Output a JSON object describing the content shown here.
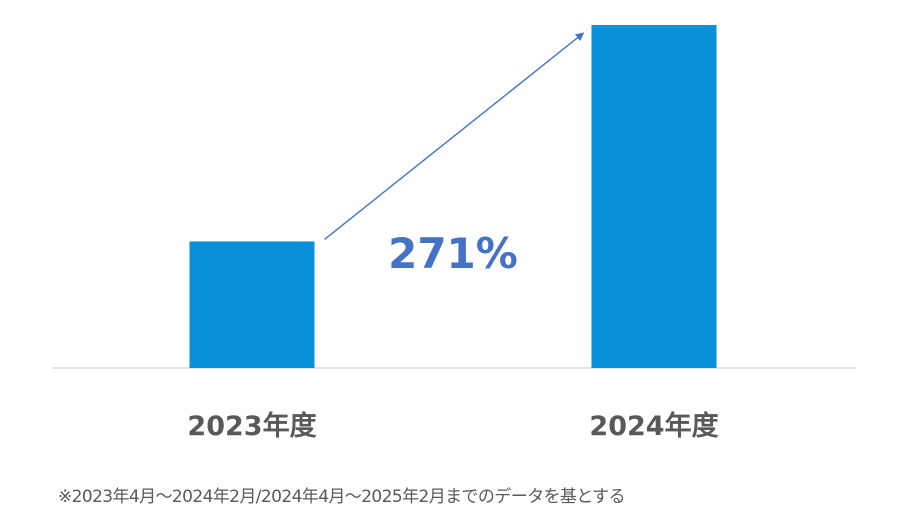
{
  "colors": {
    "bar": "#0891d8",
    "arrow": "#4472c4",
    "annotation": "#4472c4",
    "category_text": "#595959",
    "baseline": "#d9d9d9",
    "footnote_text": "#595959"
  },
  "chart_data": {
    "type": "bar",
    "categories": [
      "2023年度",
      "2024年度"
    ],
    "values": [
      100,
      271
    ],
    "ylim": [
      0,
      271
    ],
    "grid": false,
    "legend": "none",
    "title": "",
    "xlabel": "",
    "ylabel": "",
    "annotation": {
      "text": "271%",
      "arrow": "from 2023年度 bar top to 2024年度 bar top"
    }
  },
  "footnote": "※2023年4月～2024年2月/2024年4月～2025年2月までのデータを基とする"
}
